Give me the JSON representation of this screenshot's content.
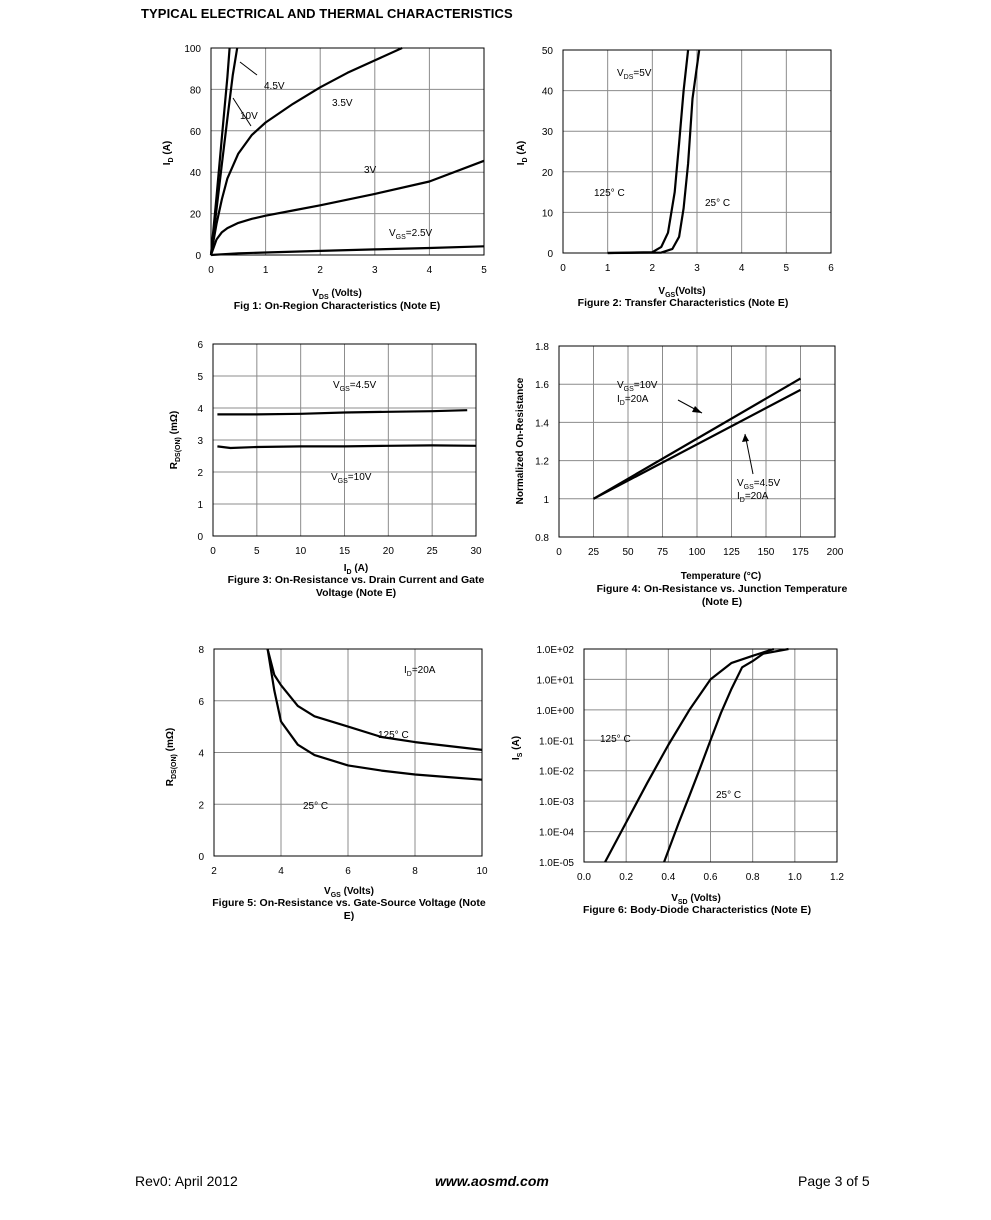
{
  "page": {
    "title": "TYPICAL ELECTRICAL AND THERMAL CHARACTERISTICS",
    "footer_left": "Rev0: April 2012",
    "footer_center": "www.aosmd.com",
    "footer_right": "Page 3 of 5"
  },
  "chart_data": [
    {
      "id": "fig1",
      "type": "line",
      "caption": "Fig 1: On-Region Characteristics (Note E)",
      "xlabel": "VDS (Volts)",
      "ylabel": "ID (A)",
      "xlim": [
        0,
        5
      ],
      "ylim": [
        0,
        100
      ],
      "xticks": [
        0,
        1,
        2,
        3,
        4,
        5
      ],
      "yticks": [
        0,
        20,
        40,
        60,
        80,
        100
      ],
      "grid": true,
      "series": [
        {
          "name": "10V",
          "x": [
            0,
            0.1,
            0.2,
            0.3,
            0.34
          ],
          "y": [
            0,
            28,
            57,
            86,
            100
          ]
        },
        {
          "name": "4.5V",
          "x": [
            0,
            0.1,
            0.2,
            0.3,
            0.4,
            0.48
          ],
          "y": [
            0,
            22,
            44,
            66,
            87,
            100
          ]
        },
        {
          "name": "3.5V",
          "x": [
            0,
            0.1,
            0.2,
            0.3,
            0.5,
            0.75,
            1.0,
            1.5,
            2.0,
            2.5,
            3.0,
            3.5
          ],
          "y": [
            0,
            15,
            27,
            37,
            49,
            58,
            64,
            73,
            81,
            88,
            94,
            100
          ]
        },
        {
          "name": "3V",
          "x": [
            0,
            0.1,
            0.2,
            0.3,
            0.5,
            0.75,
            1.0,
            1.5,
            2.0,
            3.0,
            4.0,
            5.0
          ],
          "y": [
            0,
            7.5,
            11,
            13,
            15.5,
            17.5,
            19,
            21.5,
            24,
            29.5,
            35.5,
            45.5
          ]
        },
        {
          "name": "VGS=2.5V",
          "x": [
            0,
            0.5,
            1,
            2,
            3,
            4,
            5
          ],
          "y": [
            0,
            0.8,
            1.2,
            2,
            2.7,
            3.4,
            4.2
          ]
        }
      ],
      "annotations": [
        "10V",
        "4.5V",
        "3.5V",
        "3V",
        "VGS=2.5V"
      ]
    },
    {
      "id": "fig2",
      "type": "line",
      "caption": "Figure 2: Transfer Characteristics (Note E)",
      "xlabel": "VGS(Volts)",
      "ylabel": "ID(A)",
      "xlim": [
        0,
        6
      ],
      "ylim": [
        0,
        50
      ],
      "xticks": [
        0,
        1,
        2,
        3,
        4,
        5,
        6
      ],
      "yticks": [
        0,
        10,
        20,
        30,
        40,
        50
      ],
      "grid": true,
      "series": [
        {
          "name": "125° C",
          "x": [
            1,
            2,
            2.2,
            2.35,
            2.5,
            2.6,
            2.7,
            2.8
          ],
          "y": [
            0,
            0.2,
            1.5,
            5,
            15,
            27,
            40,
            50
          ]
        },
        {
          "name": "25° C",
          "x": [
            1,
            2.2,
            2.45,
            2.6,
            2.7,
            2.8,
            2.9,
            3.05
          ],
          "y": [
            0,
            0.1,
            1,
            4,
            11,
            22,
            38,
            50
          ]
        }
      ],
      "annotations": [
        "VDS=5V",
        "125° C",
        "25° C"
      ]
    },
    {
      "id": "fig3",
      "type": "line",
      "caption": "Figure 3: On-Resistance vs. Drain Current and Gate Voltage (Note E)",
      "xlabel": "ID (A)",
      "ylabel": "RDS(ON) (mΩ)",
      "xlim": [
        0,
        30
      ],
      "ylim": [
        0,
        6
      ],
      "xticks": [
        0,
        5,
        10,
        15,
        20,
        25,
        30
      ],
      "yticks": [
        0,
        1,
        2,
        3,
        4,
        5,
        6
      ],
      "grid": true,
      "series": [
        {
          "name": "VGS=4.5V",
          "x": [
            0.5,
            5,
            10,
            15,
            20,
            25,
            29
          ],
          "y": [
            3.8,
            3.8,
            3.82,
            3.86,
            3.88,
            3.9,
            3.93
          ]
        },
        {
          "name": "VGS=10V",
          "x": [
            0.5,
            2,
            5,
            10,
            15,
            20,
            25,
            30
          ],
          "y": [
            2.8,
            2.75,
            2.78,
            2.8,
            2.8,
            2.82,
            2.83,
            2.82
          ]
        }
      ],
      "annotations": [
        "VGS=4.5V",
        "VGS=10V"
      ]
    },
    {
      "id": "fig4",
      "type": "line",
      "caption": "Figure 4: On-Resistance vs. Junction Temperature (Note E)",
      "xlabel": "Temperature (°C)",
      "ylabel": "Normalized On-Resistance",
      "xlim": [
        0,
        200
      ],
      "ylim": [
        0.8,
        1.8
      ],
      "xticks": [
        0,
        25,
        50,
        75,
        100,
        125,
        150,
        175,
        200
      ],
      "yticks": [
        0.8,
        1,
        1.2,
        1.4,
        1.6,
        1.8
      ],
      "grid": true,
      "series": [
        {
          "name": "VGS=10V ID=20A",
          "x": [
            25,
            175
          ],
          "y": [
            1.0,
            1.63
          ]
        },
        {
          "name": "VGS=4.5V ID=20A",
          "x": [
            25,
            175
          ],
          "y": [
            1.0,
            1.57
          ]
        }
      ],
      "annotations": [
        "VGS=10V ID=20A",
        "VGS=4.5V ID=20A"
      ]
    },
    {
      "id": "fig5",
      "type": "line",
      "caption": "Figure 5: On-Resistance vs. Gate-Source Voltage (Note E)",
      "xlabel": "VGS (Volts)",
      "ylabel": "RDS(ON) (mΩ)",
      "xlim": [
        2,
        10
      ],
      "ylim": [
        0,
        8
      ],
      "xticks": [
        2,
        4,
        6,
        8,
        10
      ],
      "yticks": [
        0,
        2,
        4,
        6,
        8
      ],
      "grid": true,
      "series": [
        {
          "name": "125° C",
          "x": [
            3.6,
            3.8,
            4,
            4.5,
            5,
            6,
            7,
            8,
            9,
            10
          ],
          "y": [
            8,
            7,
            6.6,
            5.8,
            5.4,
            5.0,
            4.6,
            4.4,
            4.25,
            4.1
          ]
        },
        {
          "name": "25° C",
          "x": [
            3.6,
            3.8,
            4,
            4.5,
            5,
            6,
            7,
            8,
            9,
            10
          ],
          "y": [
            8,
            6.4,
            5.2,
            4.3,
            3.9,
            3.5,
            3.3,
            3.15,
            3.05,
            2.95
          ]
        }
      ],
      "annotations": [
        "ID=20A",
        "125° C",
        "25° C"
      ]
    },
    {
      "id": "fig6",
      "type": "line",
      "caption": "Figure 6: Body-Diode Characteristics (Note E)",
      "xlabel": "VSD (Volts)",
      "ylabel": "IS (A)",
      "xlim": [
        0,
        1.2
      ],
      "ylim": [
        1e-05,
        100
      ],
      "xscale": "linear",
      "yscale": "log",
      "xticks": [
        "0.0",
        "0.2",
        "0.4",
        "0.6",
        "0.8",
        "1.0",
        "1.2"
      ],
      "yticks": [
        "1.0E-05",
        "1.0E-04",
        "1.0E-03",
        "1.0E-02",
        "1.0E-01",
        "1.0E+00",
        "1.0E+01",
        "1.0E+02"
      ],
      "grid": true,
      "series": [
        {
          "name": "125° C",
          "x": [
            0.1,
            0.2,
            0.3,
            0.4,
            0.5,
            0.6,
            0.7,
            0.8,
            0.9
          ],
          "y": [
            1e-05,
            0.0002,
            0.004,
            0.07,
            1,
            10,
            35,
            60,
            100
          ]
        },
        {
          "name": "25° C",
          "x": [
            0.38,
            0.45,
            0.5,
            0.55,
            0.6,
            0.65,
            0.7,
            0.75,
            0.8,
            0.85,
            0.97
          ],
          "y": [
            1e-05,
            0.0002,
            0.0015,
            0.012,
            0.1,
            0.8,
            5,
            25,
            40,
            70,
            100
          ]
        }
      ],
      "annotations": [
        "125° C",
        "25° C"
      ]
    }
  ]
}
